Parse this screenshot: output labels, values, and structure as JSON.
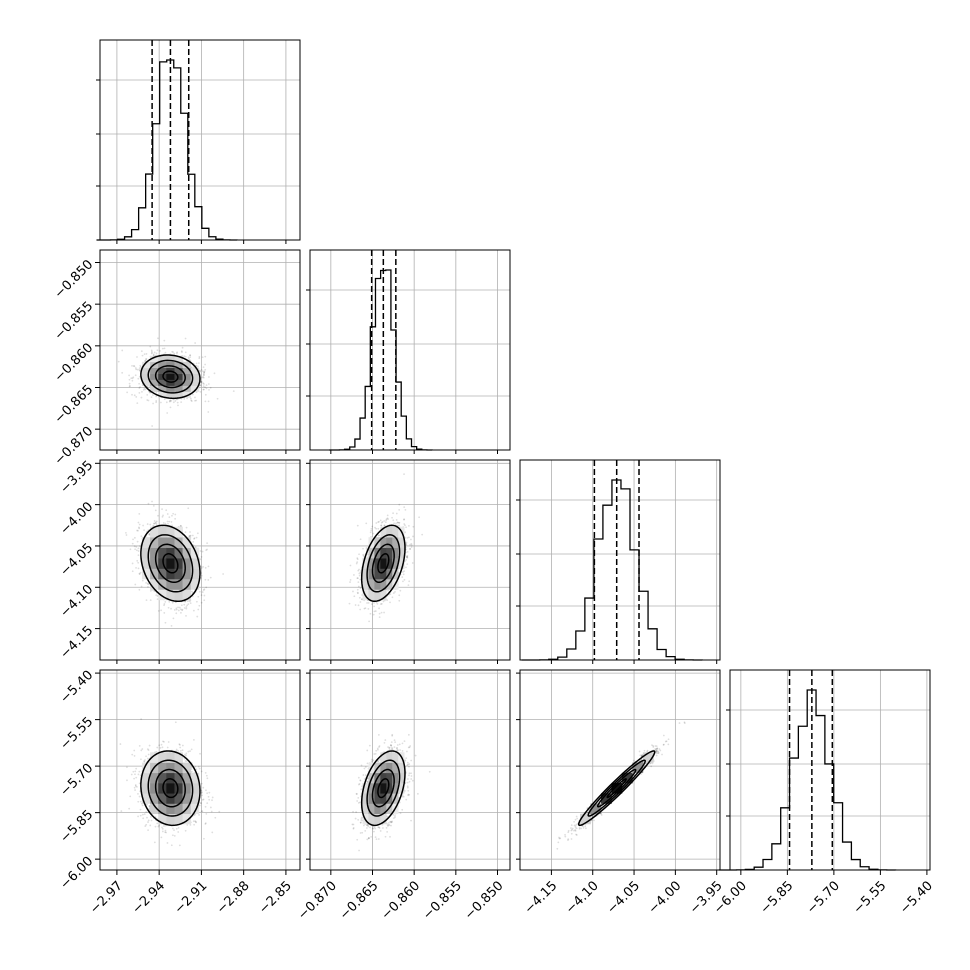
{
  "chart_data": {
    "type": "corner",
    "grid": true,
    "dimensions": [
      {
        "median": -2.932,
        "q16": -2.945,
        "q84": -2.919,
        "sigma": 0.0105,
        "range": [
          -2.982,
          -2.84
        ],
        "ticks": [
          -2.97,
          -2.94,
          -2.91,
          -2.88,
          -2.85
        ],
        "tick_labels": [
          "−2.97",
          "−2.94",
          "−2.91",
          "−2.88",
          "−2.85"
        ]
      },
      {
        "median": -0.8637,
        "q16": -0.8651,
        "q84": -0.8622,
        "sigma": 0.0013,
        "range": [
          -0.8725,
          -0.8485
        ],
        "ticks": [
          -0.87,
          -0.865,
          -0.86,
          -0.855,
          -0.85
        ],
        "tick_labels": [
          "−0.870",
          "−0.865",
          "−0.860",
          "−0.855",
          "−0.850"
        ]
      },
      {
        "median": -4.071,
        "q16": -4.098,
        "q84": -4.044,
        "sigma": 0.023,
        "range": [
          -4.188,
          -3.946
        ],
        "ticks": [
          -4.15,
          -4.1,
          -4.05,
          -4.0,
          -3.95
        ],
        "tick_labels": [
          "−4.15",
          "−4.10",
          "−4.05",
          "−4.00",
          "−3.95"
        ]
      },
      {
        "median": -5.771,
        "q16": -5.843,
        "q84": -5.705,
        "sigma": 0.06,
        "range": [
          -6.035,
          -5.39
        ],
        "ticks": [
          -6.0,
          -5.85,
          -5.7,
          -5.55,
          -5.4
        ],
        "tick_labels": [
          "−6.00",
          "−5.85",
          "−5.70",
          "−5.55",
          "−5.40"
        ]
      }
    ],
    "correlations": [
      {
        "pair": [
          1,
          0
        ],
        "rho": -0.1
      },
      {
        "pair": [
          2,
          0
        ],
        "rho": -0.25
      },
      {
        "pair": [
          2,
          1
        ],
        "rho": 0.4
      },
      {
        "pair": [
          3,
          0
        ],
        "rho": -0.08
      },
      {
        "pair": [
          3,
          1
        ],
        "rho": 0.4
      },
      {
        "pair": [
          3,
          2
        ],
        "rho": 0.97
      }
    ],
    "histogram_bins": 20,
    "contour_levels": [
      0.5,
      1.0,
      1.5,
      2.0
    ],
    "colors": {
      "line": "#000000",
      "grid": "#b0b0b0",
      "scatter": "#000000"
    }
  }
}
